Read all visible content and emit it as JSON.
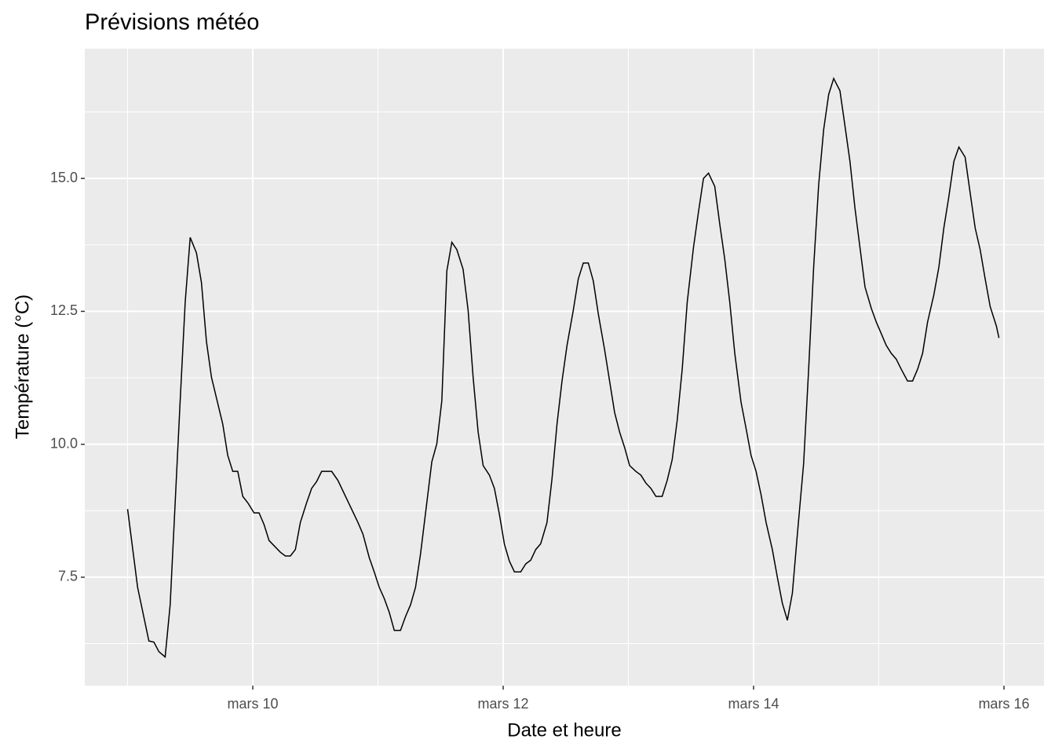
{
  "chart_data": {
    "type": "line",
    "title": "Prévisions météo",
    "x_label": "Date et heure",
    "y_label": "Température (°C)",
    "x": [
      9.0,
      9.08,
      9.17,
      9.21,
      9.25,
      9.3,
      9.34,
      9.38,
      9.42,
      9.46,
      9.5,
      9.55,
      9.59,
      9.63,
      9.67,
      9.76,
      9.8,
      9.84,
      9.88,
      9.92,
      9.96,
      10.01,
      10.05,
      10.09,
      10.13,
      10.22,
      10.26,
      10.3,
      10.34,
      10.38,
      10.43,
      10.47,
      10.51,
      10.55,
      10.63,
      10.68,
      10.84,
      10.88,
      10.93,
      10.97,
      11.01,
      11.05,
      11.09,
      11.13,
      11.18,
      11.22,
      11.26,
      11.3,
      11.34,
      11.39,
      11.43,
      11.47,
      11.51,
      11.55,
      11.59,
      11.63,
      11.68,
      11.72,
      11.76,
      11.8,
      11.84,
      11.89,
      11.93,
      11.97,
      12.01,
      12.05,
      12.09,
      12.14,
      12.18,
      12.22,
      12.26,
      12.3,
      12.35,
      12.39,
      12.43,
      12.47,
      12.51,
      12.56,
      12.6,
      12.64,
      12.68,
      12.72,
      12.76,
      12.81,
      12.85,
      12.89,
      12.93,
      12.97,
      13.01,
      13.06,
      13.1,
      13.14,
      13.18,
      13.22,
      13.27,
      13.31,
      13.35,
      13.39,
      13.43,
      13.47,
      13.52,
      13.56,
      13.6,
      13.64,
      13.69,
      13.73,
      13.77,
      13.81,
      13.85,
      13.9,
      13.94,
      13.98,
      14.02,
      14.06,
      14.1,
      14.15,
      14.19,
      14.23,
      14.27,
      14.31,
      14.35,
      14.4,
      14.44,
      14.48,
      14.52,
      14.56,
      14.6,
      14.64,
      14.69,
      14.73,
      14.77,
      14.81,
      14.85,
      14.89,
      14.94,
      14.98,
      15.02,
      15.06,
      15.1,
      15.14,
      15.18,
      15.23,
      15.27,
      15.31,
      15.35,
      15.39,
      15.44,
      15.48,
      15.52,
      15.56,
      15.6,
      15.64,
      15.69,
      15.73,
      15.77,
      15.81,
      15.85,
      15.89,
      15.94,
      15.96
    ],
    "series": [
      {
        "color": "#000000",
        "values": [
          8.78,
          7.31,
          6.3,
          6.28,
          6.1,
          6.0,
          6.98,
          8.9,
          10.82,
          12.67,
          13.89,
          13.6,
          13.04,
          11.93,
          11.26,
          10.38,
          9.79,
          9.49,
          9.49,
          9.02,
          8.9,
          8.71,
          8.71,
          8.49,
          8.19,
          7.97,
          7.9,
          7.9,
          8.02,
          8.53,
          8.9,
          9.17,
          9.3,
          9.49,
          9.49,
          9.32,
          8.53,
          8.31,
          7.87,
          7.6,
          7.31,
          7.1,
          6.84,
          6.5,
          6.5,
          6.76,
          6.98,
          7.31,
          7.94,
          8.9,
          9.67,
          10.01,
          10.82,
          13.26,
          13.8,
          13.66,
          13.29,
          12.52,
          11.26,
          10.23,
          9.6,
          9.42,
          9.17,
          8.68,
          8.12,
          7.8,
          7.6,
          7.6,
          7.75,
          7.82,
          8.02,
          8.13,
          8.53,
          9.35,
          10.38,
          11.19,
          11.86,
          12.52,
          13.11,
          13.41,
          13.41,
          13.07,
          12.45,
          11.78,
          11.19,
          10.6,
          10.23,
          9.94,
          9.6,
          9.49,
          9.42,
          9.27,
          9.17,
          9.02,
          9.02,
          9.32,
          9.71,
          10.45,
          11.41,
          12.67,
          13.7,
          14.37,
          15.0,
          15.1,
          14.85,
          14.14,
          13.48,
          12.67,
          11.71,
          10.79,
          10.3,
          9.79,
          9.49,
          9.05,
          8.53,
          8.02,
          7.5,
          7.01,
          6.69,
          7.2,
          8.31,
          9.64,
          11.41,
          13.33,
          14.88,
          15.92,
          16.58,
          16.88,
          16.65,
          15.99,
          15.32,
          14.44,
          13.7,
          12.96,
          12.56,
          12.3,
          12.08,
          11.86,
          11.71,
          11.6,
          11.41,
          11.19,
          11.19,
          11.41,
          11.71,
          12.3,
          12.81,
          13.33,
          14.07,
          14.66,
          15.32,
          15.59,
          15.4,
          14.73,
          14.07,
          13.66,
          13.11,
          12.59,
          12.22,
          12.0
        ]
      }
    ],
    "xlim": [
      8.658,
      16.32
    ],
    "ylim": [
      5.46,
      17.44
    ],
    "xticks": [
      {
        "value": 10,
        "label": "mars 10"
      },
      {
        "value": 12,
        "label": "mars 12"
      },
      {
        "value": 14,
        "label": "mars 14"
      },
      {
        "value": 16,
        "label": "mars 16"
      }
    ],
    "yticks": [
      {
        "value": 7.5,
        "label": "7.5"
      },
      {
        "value": 10,
        "label": "10.0"
      },
      {
        "value": 12.5,
        "label": "12.5"
      },
      {
        "value": 15,
        "label": "15.0"
      }
    ],
    "grid": true
  }
}
